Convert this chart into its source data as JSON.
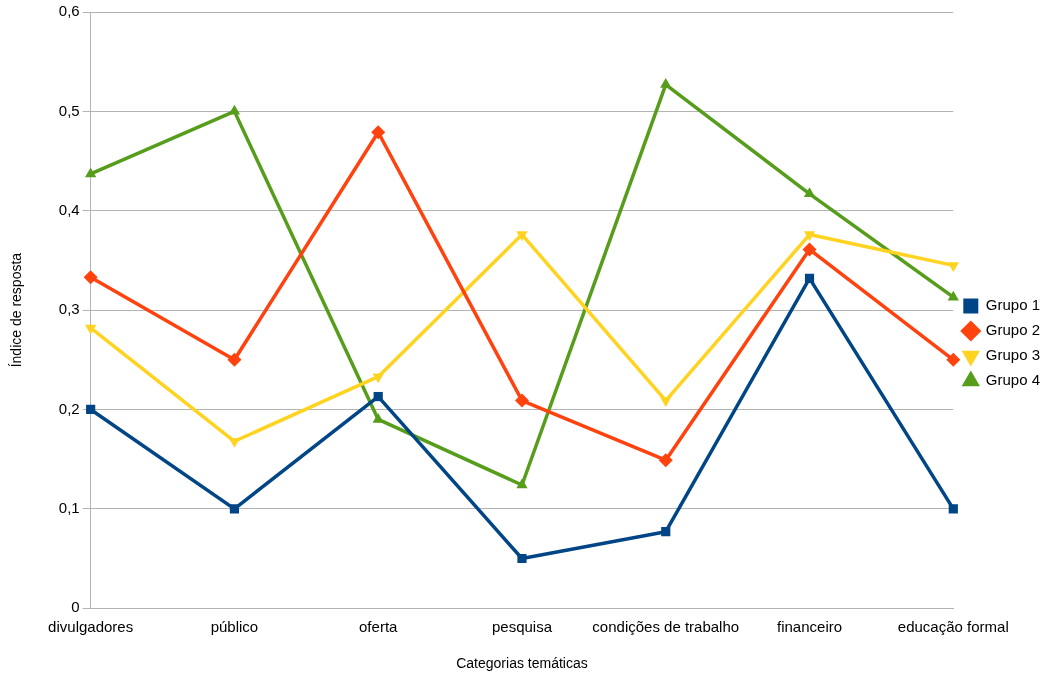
{
  "chart_data": {
    "type": "line",
    "xlabel": "Categorias temáticas",
    "ylabel": "Índice de resposta",
    "categories": [
      "divulgadores",
      "público",
      "oferta",
      "pesquisa",
      "condições de trabalho",
      "financeiro",
      "educação formal"
    ],
    "series": [
      {
        "name": "Grupo 1",
        "color": "#004586",
        "marker": "square",
        "values": [
          0.2,
          0.1,
          0.213,
          0.05,
          0.077,
          0.332,
          0.1
        ]
      },
      {
        "name": "Grupo 2",
        "color": "#ff420e",
        "marker": "diamond",
        "values": [
          0.333,
          0.25,
          0.479,
          0.209,
          0.149,
          0.361,
          0.25
        ]
      },
      {
        "name": "Grupo 3",
        "color": "#ffd320",
        "marker": "triangle-down",
        "values": [
          0.282,
          0.168,
          0.233,
          0.376,
          0.209,
          0.376,
          0.345
        ]
      },
      {
        "name": "Grupo 4",
        "color": "#579d1c",
        "marker": "triangle",
        "values": [
          0.437,
          0.5,
          0.19,
          0.124,
          0.527,
          0.417,
          0.313
        ]
      }
    ],
    "ylim": [
      0,
      0.6
    ],
    "yticks": [
      0,
      {
        "value": 0.1,
        "label": "0,1"
      },
      {
        "value": 0.2,
        "label": "0,2"
      },
      {
        "value": 0.3,
        "label": "0,3"
      },
      {
        "value": 0.4,
        "label": "0,4"
      },
      {
        "value": 0.5,
        "label": "0,5"
      },
      {
        "value": 0.6,
        "label": "0,6"
      }
    ],
    "grid": "y",
    "legend": "right",
    "line_style": "solid"
  }
}
